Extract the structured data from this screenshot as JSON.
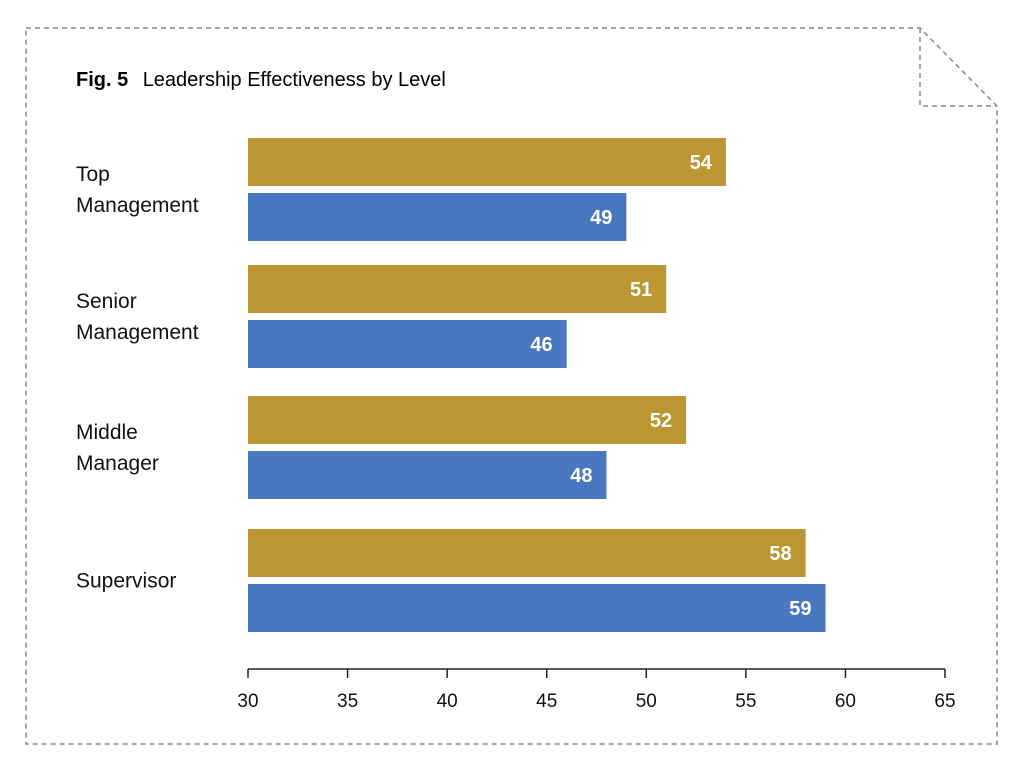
{
  "title": {
    "fig_label": "Fig. 5",
    "text": "Leadership Effectiveness by Level"
  },
  "colors": {
    "series_a": "#BC9633",
    "series_b": "#4A78C0",
    "border": "#8A8A8A",
    "axis": "#222222"
  },
  "chart_data": {
    "type": "bar",
    "orientation": "horizontal",
    "categories": [
      [
        "Top",
        "Management"
      ],
      [
        "Senior",
        "Management"
      ],
      [
        "Middle",
        "Manager"
      ],
      [
        "Supervisor"
      ]
    ],
    "series": [
      {
        "color": "#BC9633",
        "values": [
          54,
          51,
          52,
          58
        ]
      },
      {
        "color": "#4A78C0",
        "values": [
          49,
          46,
          48,
          59
        ]
      }
    ],
    "data_labels": [
      [
        "54",
        "49"
      ],
      [
        "51",
        "46"
      ],
      [
        "52",
        "48"
      ],
      [
        "58",
        "59"
      ]
    ],
    "xlim": [
      30,
      65
    ],
    "xticks": [
      "30",
      "35",
      "40",
      "45",
      "50",
      "55",
      "60",
      "65"
    ],
    "grid": false,
    "legend": "none"
  }
}
